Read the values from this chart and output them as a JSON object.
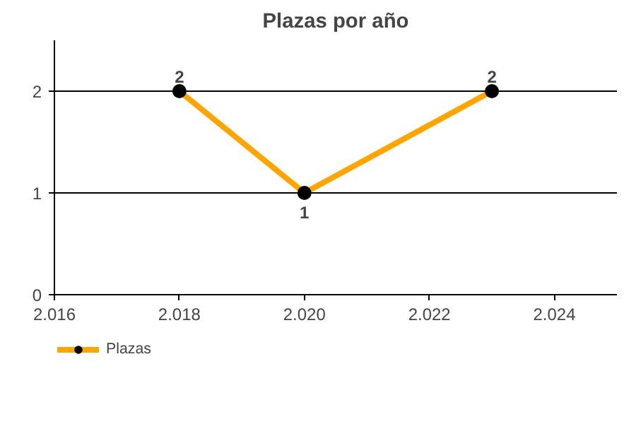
{
  "chart_data": {
    "type": "line",
    "title": "Plazas por año",
    "x": [
      2018,
      2020,
      2023
    ],
    "series": [
      {
        "name": "Plazas",
        "color": "#ffa500",
        "values": [
          2,
          1,
          2
        ]
      }
    ],
    "xlim": [
      2016,
      2025
    ],
    "xticks": [
      {
        "value": 2016,
        "label": "2.016"
      },
      {
        "value": 2018,
        "label": "2.018"
      },
      {
        "value": 2020,
        "label": "2.020"
      },
      {
        "value": 2022,
        "label": "2.022"
      },
      {
        "value": 2024,
        "label": "2.024"
      }
    ],
    "ylim": [
      0,
      2.5
    ],
    "yticks": [
      0,
      1,
      2
    ],
    "grid": "y",
    "legend": "bottom left",
    "marker": "circle",
    "line_style": "solid",
    "data_labels": true
  }
}
